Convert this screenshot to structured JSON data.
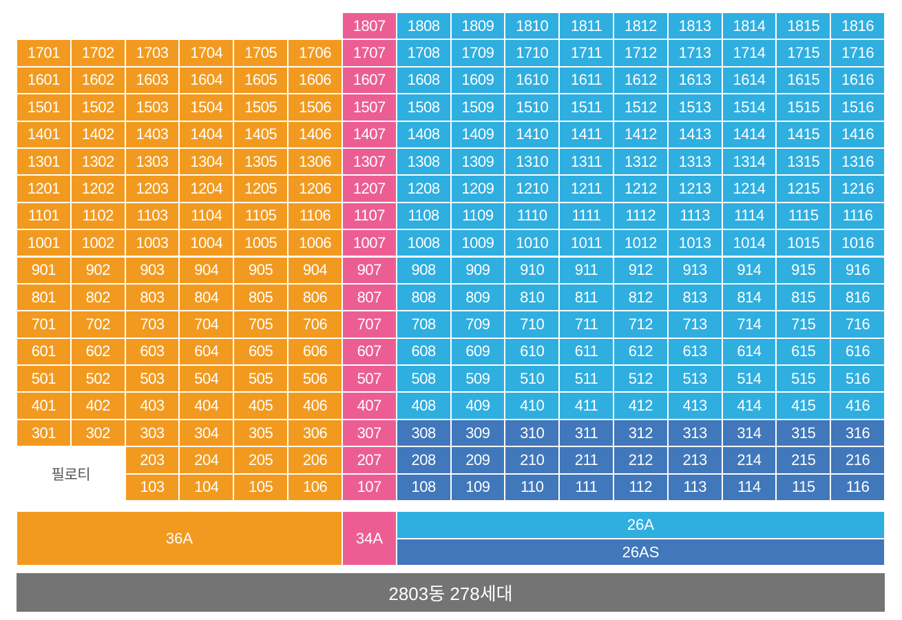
{
  "colors": {
    "type_36A": "#F29A1F",
    "type_34A": "#EC5E93",
    "type_26A": "#2FAEE0",
    "type_26AS": "#4177BB",
    "piloti_bg": "#FFFFFF",
    "footer_bg": "#747474"
  },
  "floors": [
    18,
    17,
    16,
    15,
    14,
    13,
    12,
    11,
    10,
    9,
    8,
    7,
    6,
    5,
    4,
    3,
    2,
    1
  ],
  "columns": [
    1,
    2,
    3,
    4,
    5,
    6,
    7,
    8,
    9,
    10,
    11,
    12,
    13,
    14,
    15,
    16
  ],
  "column_types": [
    "36A",
    "36A",
    "36A",
    "36A",
    "36A",
    "36A",
    "34A",
    "26A",
    "26A",
    "26A",
    "26A",
    "26A",
    "26A",
    "26A",
    "26A",
    "26A"
  ],
  "units_missing": {
    "18": [
      1,
      2,
      3,
      4,
      5,
      6
    ],
    "2": [
      1,
      2
    ],
    "1": [
      1,
      2
    ]
  },
  "type_26AS_floors": [
    3,
    2,
    1
  ],
  "label_overrides": {
    "9-6": "904"
  },
  "piloti_label": "필로티",
  "legend": {
    "type_36A": "36A",
    "type_34A": "34A",
    "type_26A": "26A",
    "type_26AS": "26AS"
  },
  "footer_label": "2803동 278세대"
}
